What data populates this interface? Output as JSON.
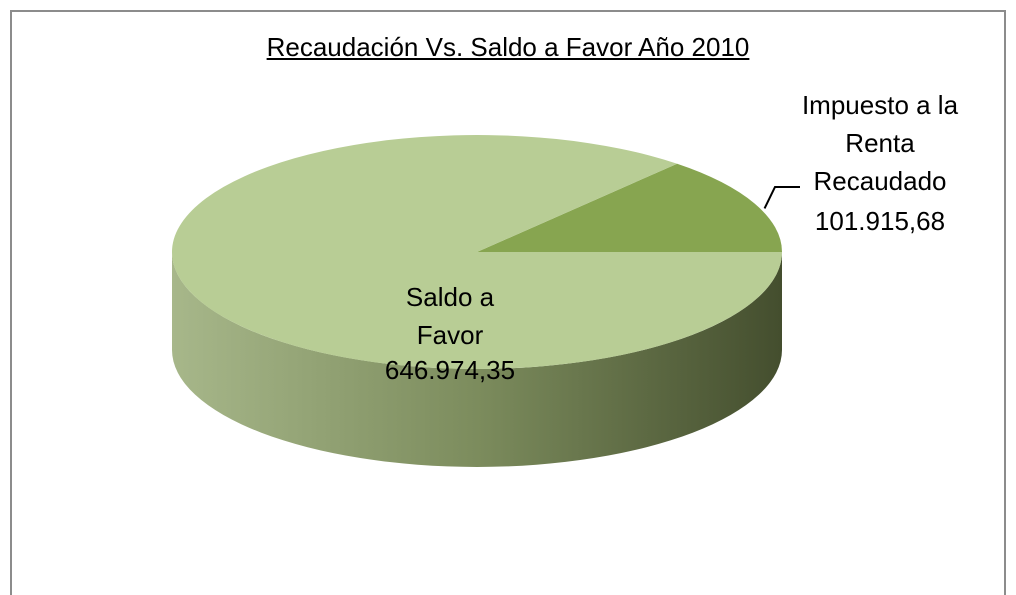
{
  "chart_data": {
    "type": "pie",
    "title": "Recaudación Vs. Saldo a Favor Año 2010",
    "categories": [
      "Impuesto a la Renta Recaudado",
      "Saldo a Favor"
    ],
    "values": [
      101915.68,
      646974.35
    ],
    "value_labels": [
      "101.915,68",
      "646.974,35"
    ],
    "colors": [
      "#87a550",
      "#b8cd95"
    ]
  }
}
